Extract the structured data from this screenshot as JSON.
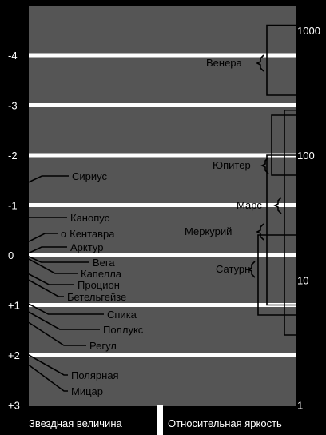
{
  "magnitude_ticks": [
    "-4",
    "-3",
    "-2",
    "-1",
    "0",
    "+1",
    "+2",
    "+3"
  ],
  "brightness_ticks": [
    "1000",
    "100",
    "10",
    "1"
  ],
  "stars": [
    {
      "name": "Сириус",
      "magnitude": -1.46
    },
    {
      "name": "Канопус",
      "magnitude": -0.72
    },
    {
      "name": "α Кентавра",
      "magnitude": -0.27
    },
    {
      "name": "Арктур",
      "magnitude": -0.04
    },
    {
      "name": "Вега",
      "magnitude": 0.03
    },
    {
      "name": "Капелла",
      "magnitude": 0.08
    },
    {
      "name": "Процион",
      "magnitude": 0.38
    },
    {
      "name": "Бетельгейзе",
      "magnitude": 0.5
    },
    {
      "name": "Спика",
      "magnitude": 0.98
    },
    {
      "name": "Поллукс",
      "magnitude": 1.14
    },
    {
      "name": "Регул",
      "magnitude": 1.35
    },
    {
      "name": "Полярная",
      "magnitude": 2.0
    },
    {
      "name": "Мицар",
      "magnitude": 2.2
    }
  ],
  "planets": [
    {
      "name": "Венера",
      "range": [
        -4.6,
        -3.2
      ]
    },
    {
      "name": "Юпитер",
      "range": [
        -2.8,
        -1.6
      ]
    },
    {
      "name": "Марс",
      "range": [
        -2.9,
        1.6
      ]
    },
    {
      "name": "Меркурий",
      "range": [
        -2.0,
        1.0
      ]
    },
    {
      "name": "Сатурн",
      "range": [
        -0.4,
        1.2
      ]
    }
  ],
  "captions": {
    "left": "Звездная величина",
    "right": "Относительная яркость"
  }
}
